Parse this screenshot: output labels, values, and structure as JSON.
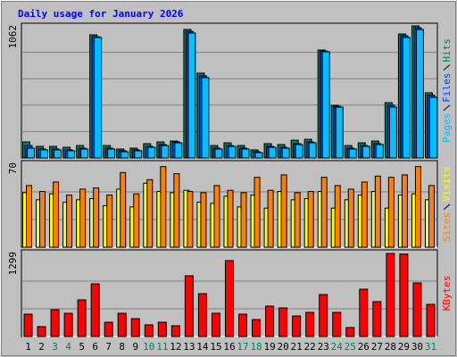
{
  "chart_data": [
    {
      "type": "bar",
      "title": "Daily usage for January 2026",
      "ylim": [
        0,
        1062
      ],
      "series": [
        {
          "name": "Hits",
          "color": "#00805c",
          "values": [
            129,
            93,
            93,
            86,
            100,
            990,
            100,
            72,
            79,
            115,
            129,
            136,
            1033,
            682,
            100,
            122,
            100,
            65,
            115,
            108,
            143,
            150,
            868,
            423,
            100,
            122,
            136,
            445,
            997,
            1062,
            524
          ]
        },
        {
          "name": "Files",
          "color": "#0040ff",
          "values": [
            100,
            72,
            72,
            65,
            79,
            975,
            79,
            58,
            65,
            93,
            108,
            129,
            1018,
            660,
            79,
            100,
            79,
            50,
            93,
            86,
            115,
            129,
            860,
            415,
            79,
            100,
            115,
            425,
            983,
            1047,
            505
          ]
        },
        {
          "name": "Pages",
          "color": "#00c0ff",
          "values": [
            79,
            65,
            65,
            58,
            72,
            969,
            72,
            50,
            58,
            86,
            100,
            122,
            1005,
            646,
            72,
            93,
            72,
            43,
            86,
            79,
            108,
            122,
            854,
            409,
            72,
            93,
            108,
            409,
            969,
            1033,
            488
          ]
        }
      ]
    },
    {
      "type": "bar",
      "ylim": [
        0,
        70
      ],
      "series": [
        {
          "name": "Visits",
          "color": "#ffff00",
          "values": [
            46,
            40,
            45,
            38,
            40,
            41,
            35,
            49,
            34,
            54,
            47,
            46,
            48,
            38,
            37,
            43,
            34,
            44,
            33,
            47,
            40,
            41,
            47,
            33,
            40,
            44,
            47,
            33,
            44,
            45,
            40
          ]
        },
        {
          "name": "Sites",
          "color": "#ff8000",
          "values": [
            52,
            47,
            55,
            44,
            49,
            50,
            44,
            63,
            45,
            57,
            68,
            62,
            47,
            46,
            52,
            48,
            46,
            59,
            48,
            61,
            46,
            47,
            59,
            52,
            49,
            55,
            60,
            59,
            61,
            68,
            52
          ]
        }
      ]
    },
    {
      "type": "bar",
      "ylim": [
        0,
        1299
      ],
      "categories": [
        "1",
        "2",
        "3",
        "4",
        "5",
        "6",
        "7",
        "8",
        "9",
        "10",
        "11",
        "12",
        "13",
        "14",
        "15",
        "16",
        "17",
        "18",
        "19",
        "20",
        "21",
        "22",
        "23",
        "24",
        "25",
        "26",
        "27",
        "28",
        "29",
        "30",
        "31"
      ],
      "category_colors": [
        "#000000",
        "#000000",
        "#00805c",
        "#00805c",
        "#000000",
        "#000000",
        "#000000",
        "#000000",
        "#000000",
        "#00805c",
        "#00805c",
        "#000000",
        "#000000",
        "#000000",
        "#000000",
        "#000000",
        "#00805c",
        "#00805c",
        "#000000",
        "#000000",
        "#000000",
        "#000000",
        "#000000",
        "#00805c",
        "#00805c",
        "#000000",
        "#000000",
        "#000000",
        "#000000",
        "#000000",
        "#00805c"
      ],
      "series": [
        {
          "name": "KBytes",
          "color": "#ff0000",
          "values": [
            349,
            154,
            419,
            363,
            573,
            824,
            223,
            363,
            279,
            182,
            223,
            168,
            950,
            670,
            363,
            1187,
            349,
            265,
            475,
            447,
            321,
            377,
            656,
            377,
            140,
            740,
            545,
            1299,
            1290,
            838,
            503
          ]
        }
      ]
    }
  ]
}
